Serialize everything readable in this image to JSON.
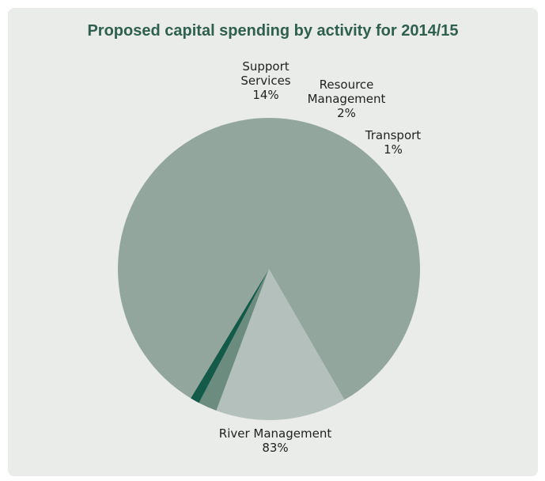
{
  "chart_data": {
    "type": "pie",
    "title": "Proposed capital spending by activity for 2014/15",
    "slices": [
      {
        "label_lines": [
          "Support",
          "Services"
        ],
        "percent_label": "14%",
        "value": 14,
        "color": "#b4c0bb"
      },
      {
        "label_lines": [
          "Resource",
          "Management"
        ],
        "percent_label": "2%",
        "value": 2,
        "color": "#6c8c80"
      },
      {
        "label_lines": [
          "Transport"
        ],
        "percent_label": "1%",
        "value": 1,
        "color": "#145a48"
      },
      {
        "label_lines": [
          "River Management"
        ],
        "percent_label": "83%",
        "value": 83,
        "color": "#92a69e"
      }
    ],
    "legend": "none"
  }
}
